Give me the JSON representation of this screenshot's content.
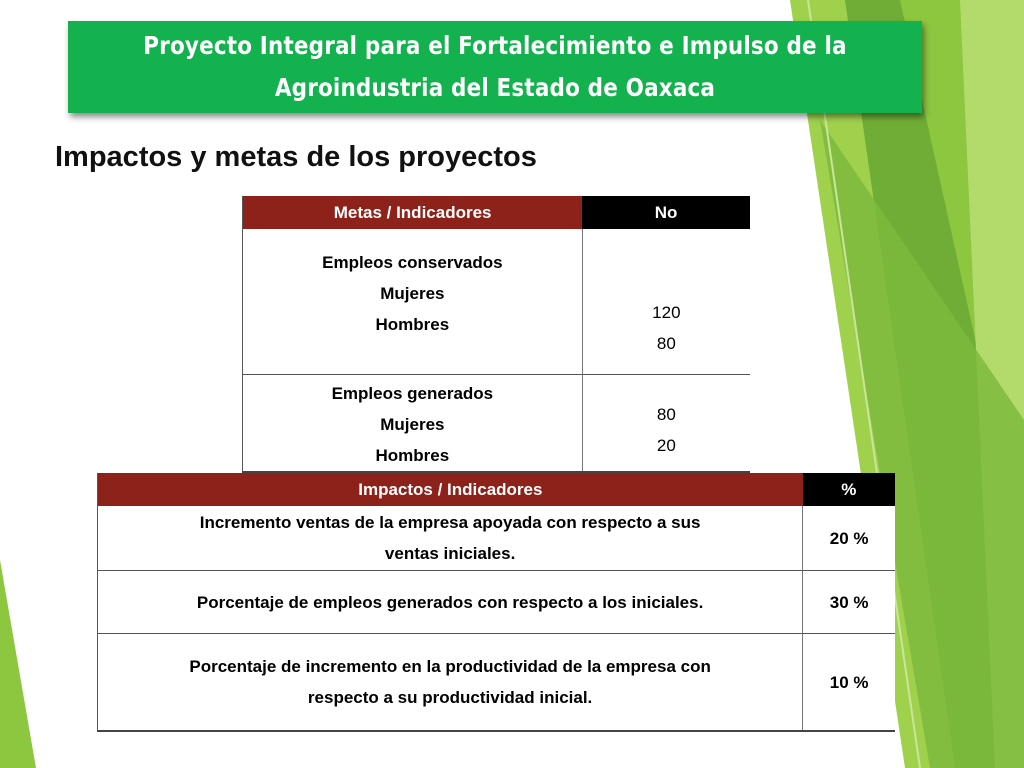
{
  "header": {
    "title": "Proyecto Integral para el Fortalecimiento e Impulso de la Agroindustria del Estado de Oaxaca",
    "title_line1": "Proyecto Integral para el Fortalecimiento e Impulso de la",
    "title_line2": "Agroindustria del Estado de Oaxaca"
  },
  "section_title": "Impactos y metas de los proyectos",
  "metas_table": {
    "headers": [
      "Metas  / Indicadores",
      "No"
    ],
    "groups": [
      {
        "title": "Empleos conservados",
        "rows": [
          {
            "label": "Mujeres",
            "value": "120"
          },
          {
            "label": "Hombres",
            "value": "80"
          }
        ]
      },
      {
        "title": "Empleos generados",
        "rows": [
          {
            "label": "Mujeres",
            "value": "80"
          },
          {
            "label": "Hombres",
            "value": "20"
          }
        ]
      }
    ]
  },
  "impactos_table": {
    "headers": [
      "Impactos  / Indicadores",
      "%"
    ],
    "rows": [
      {
        "description": "Incremento ventas de la empresa apoyada con respecto a sus ventas iniciales.",
        "line1": "Incremento ventas de la empresa apoyada con respecto a sus",
        "line2": "ventas iniciales.",
        "percent": "20 %"
      },
      {
        "description": "Porcentaje de empleos generados con respecto a los iniciales.",
        "percent": "30 %"
      },
      {
        "description": "Porcentaje de incremento en la productividad de la empresa con respecto a su productividad inicial.",
        "line1": "Porcentaje de incremento en la productividad de la empresa con",
        "line2": "respecto a su productividad inicial.",
        "percent": "10 %"
      }
    ]
  },
  "colors": {
    "banner_green": "#13b24f",
    "header_red": "#8c2219",
    "header_black": "#000000",
    "lime_green": "#8dc63f",
    "dark_green": "#5a9e2f"
  }
}
